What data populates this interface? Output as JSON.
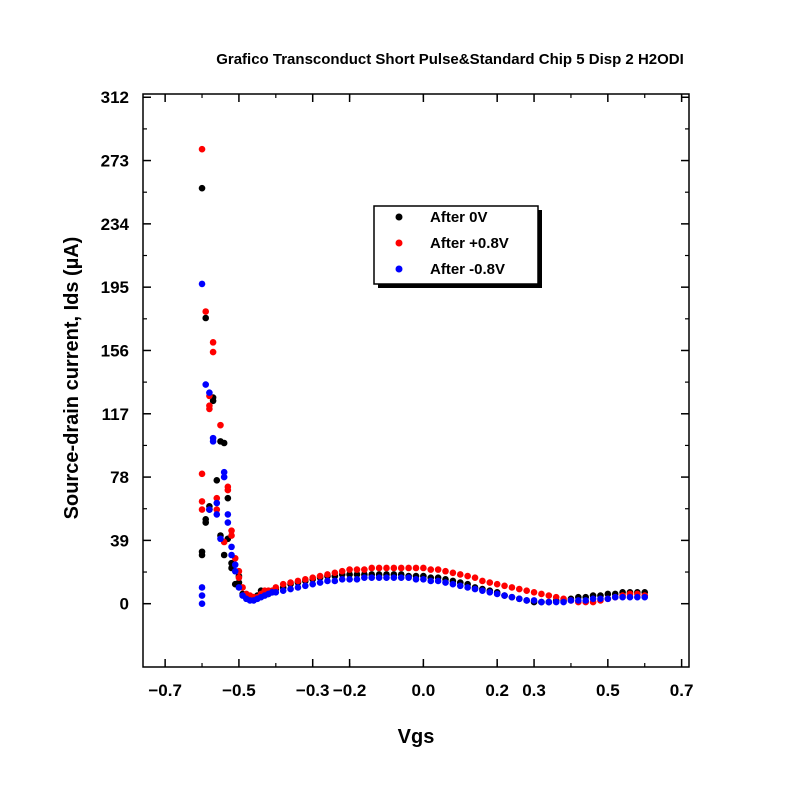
{
  "chart_data": {
    "type": "scatter",
    "title": "Grafico Transconduct Short Pulse&Standard Chip 5 Disp 2 H2ODI",
    "xlabel": "Vgs",
    "ylabel": "Source-drain current, Ids (µA)",
    "xlim": [
      -0.76,
      0.72
    ],
    "ylim": [
      -39,
      314
    ],
    "xticks": [
      -0.7,
      -0.5,
      -0.3,
      -0.2,
      0.0,
      0.2,
      0.3,
      0.5,
      0.7
    ],
    "xtick_labels": [
      "−0.7",
      "−0.5",
      "−0.3",
      "−0.2",
      "0.0",
      "0.2",
      "0.3",
      "0.5",
      "0.7"
    ],
    "yticks": [
      0,
      39,
      78,
      117,
      156,
      195,
      234,
      273,
      312
    ],
    "ytick_labels": [
      "0",
      "39",
      "78",
      "117",
      "156",
      "195",
      "234",
      "273",
      "312"
    ],
    "grid": false,
    "legend_position": "top-right",
    "series": [
      {
        "name": "After 0V",
        "color": "#000000",
        "x": [
          -0.6,
          -0.6,
          -0.6,
          -0.59,
          -0.59,
          -0.59,
          -0.58,
          -0.58,
          -0.57,
          -0.57,
          -0.56,
          -0.55,
          -0.55,
          -0.54,
          -0.54,
          -0.53,
          -0.53,
          -0.52,
          -0.52,
          -0.51,
          -0.5,
          -0.5,
          -0.49,
          -0.48,
          -0.47,
          -0.46,
          -0.45,
          -0.44,
          -0.43,
          -0.42,
          -0.41,
          -0.4,
          -0.38,
          -0.36,
          -0.34,
          -0.32,
          -0.3,
          -0.28,
          -0.26,
          -0.24,
          -0.22,
          -0.2,
          -0.18,
          -0.16,
          -0.14,
          -0.12,
          -0.1,
          -0.08,
          -0.06,
          -0.04,
          -0.02,
          0.0,
          0.02,
          0.04,
          0.06,
          0.08,
          0.1,
          0.12,
          0.14,
          0.16,
          0.18,
          0.2,
          0.22,
          0.24,
          0.26,
          0.28,
          0.3,
          0.32,
          0.34,
          0.36,
          0.38,
          0.4,
          0.42,
          0.44,
          0.46,
          0.48,
          0.5,
          0.52,
          0.54,
          0.56,
          0.58,
          0.6
        ],
        "y": [
          30,
          32,
          256,
          50,
          52,
          176,
          60,
          58,
          125,
          127,
          76,
          42,
          100,
          30,
          99,
          40,
          65,
          22,
          25,
          12,
          13,
          17,
          6,
          5,
          4,
          4,
          5,
          8,
          7,
          6,
          7,
          9,
          10,
          12,
          13,
          14,
          15,
          16,
          17,
          17,
          18,
          18,
          18,
          18,
          18,
          18,
          18,
          18,
          18,
          17,
          17,
          17,
          16,
          16,
          15,
          14,
          13,
          12,
          10,
          9,
          8,
          7,
          5,
          4,
          3,
          2,
          1,
          1,
          1,
          2,
          2,
          3,
          4,
          4,
          5,
          5,
          6,
          6,
          7,
          7,
          7,
          7
        ]
      },
      {
        "name": "After +0.8V",
        "color": "#ff0000",
        "x": [
          -0.6,
          -0.6,
          -0.6,
          -0.6,
          -0.59,
          -0.58,
          -0.58,
          -0.58,
          -0.57,
          -0.57,
          -0.56,
          -0.56,
          -0.55,
          -0.54,
          -0.53,
          -0.53,
          -0.52,
          -0.52,
          -0.51,
          -0.5,
          -0.5,
          -0.49,
          -0.48,
          -0.47,
          -0.46,
          -0.45,
          -0.44,
          -0.43,
          -0.42,
          -0.41,
          -0.4,
          -0.38,
          -0.36,
          -0.34,
          -0.32,
          -0.3,
          -0.28,
          -0.26,
          -0.24,
          -0.22,
          -0.2,
          -0.18,
          -0.16,
          -0.14,
          -0.12,
          -0.1,
          -0.08,
          -0.06,
          -0.04,
          -0.02,
          0.0,
          0.02,
          0.04,
          0.06,
          0.08,
          0.1,
          0.12,
          0.14,
          0.16,
          0.18,
          0.2,
          0.22,
          0.24,
          0.26,
          0.28,
          0.3,
          0.32,
          0.34,
          0.36,
          0.38,
          0.4,
          0.42,
          0.44,
          0.46,
          0.48,
          0.5,
          0.52,
          0.54,
          0.56,
          0.58,
          0.6
        ],
        "y": [
          58,
          63,
          80,
          280,
          180,
          122,
          120,
          128,
          155,
          161,
          65,
          58,
          110,
          38,
          70,
          72,
          45,
          42,
          28,
          20,
          16,
          10,
          6,
          5,
          4,
          4,
          6,
          8,
          8,
          8,
          10,
          12,
          13,
          14,
          15,
          16,
          17,
          18,
          19,
          20,
          21,
          21,
          21,
          22,
          22,
          22,
          22,
          22,
          22,
          22,
          22,
          21,
          21,
          20,
          19,
          18,
          17,
          16,
          14,
          13,
          12,
          11,
          10,
          9,
          8,
          7,
          6,
          5,
          4,
          3,
          2,
          1,
          1,
          1,
          2,
          3,
          4,
          5,
          6,
          6,
          5
        ]
      },
      {
        "name": "After -0.8V",
        "color": "#0000ff",
        "x": [
          -0.6,
          -0.6,
          -0.6,
          -0.6,
          -0.59,
          -0.58,
          -0.58,
          -0.57,
          -0.57,
          -0.56,
          -0.56,
          -0.55,
          -0.54,
          -0.54,
          -0.53,
          -0.53,
          -0.52,
          -0.52,
          -0.51,
          -0.51,
          -0.5,
          -0.49,
          -0.48,
          -0.47,
          -0.46,
          -0.45,
          -0.44,
          -0.43,
          -0.42,
          -0.41,
          -0.4,
          -0.38,
          -0.36,
          -0.34,
          -0.32,
          -0.3,
          -0.28,
          -0.26,
          -0.24,
          -0.22,
          -0.2,
          -0.18,
          -0.16,
          -0.14,
          -0.12,
          -0.1,
          -0.08,
          -0.06,
          -0.04,
          -0.02,
          0.0,
          0.02,
          0.04,
          0.06,
          0.08,
          0.1,
          0.12,
          0.14,
          0.16,
          0.18,
          0.2,
          0.22,
          0.24,
          0.26,
          0.28,
          0.3,
          0.32,
          0.34,
          0.36,
          0.38,
          0.4,
          0.42,
          0.44,
          0.46,
          0.48,
          0.5,
          0.52,
          0.54,
          0.56,
          0.58,
          0.6
        ],
        "y": [
          0,
          5,
          10,
          197,
          135,
          130,
          58,
          100,
          102,
          62,
          55,
          40,
          78,
          81,
          50,
          55,
          35,
          30,
          24,
          20,
          10,
          5,
          3,
          2,
          2,
          3,
          4,
          5,
          6,
          7,
          7,
          8,
          9,
          10,
          11,
          12,
          13,
          14,
          14,
          15,
          15,
          15,
          16,
          16,
          16,
          16,
          16,
          16,
          16,
          15,
          15,
          14,
          14,
          13,
          12,
          11,
          10,
          9,
          8,
          7,
          6,
          5,
          4,
          3,
          2,
          2,
          1,
          1,
          1,
          1,
          2,
          2,
          2,
          3,
          3,
          3,
          4,
          4,
          4,
          4,
          4
        ]
      }
    ]
  }
}
